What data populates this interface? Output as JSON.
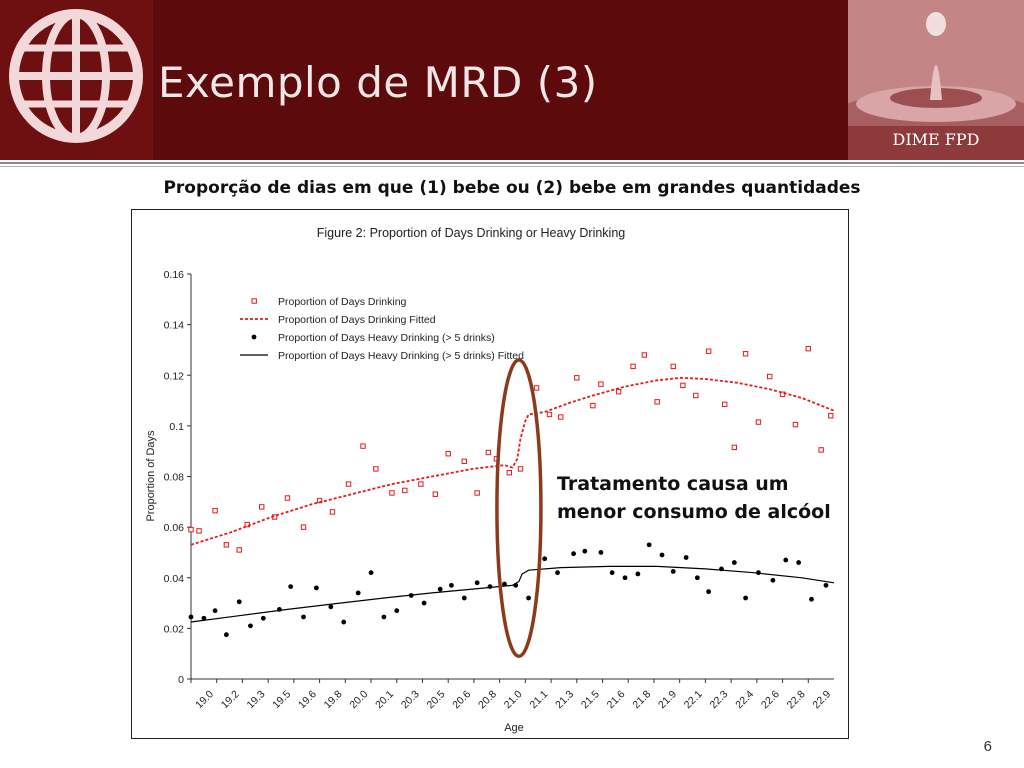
{
  "slide": {
    "title": "Exemplo de MRD (3)",
    "brand_label": "DIME FPD",
    "subtitle": "Proporção de dias em que (1) bebe ou (2) bebe em grandes quantidades",
    "annotation": "Tratamento causa um menor consumo de alcóol",
    "page_number": "6",
    "colors": {
      "header": "#5c0a0c",
      "logo_bg": "#6e0f12",
      "drinking": "#e41a1c",
      "heavy": "#000000",
      "ellipse": "#8b3a1a"
    }
  },
  "chart_data": {
    "type": "scatter",
    "title": "Figure 2: Proportion of Days Drinking or Heavy Drinking",
    "xlabel": "Age",
    "ylabel": "Proportion of Days",
    "xlim": [
      19.0,
      23.0
    ],
    "ylim": [
      0,
      0.16
    ],
    "yticks": [
      0,
      0.02,
      0.04,
      0.06,
      0.08,
      0.1,
      0.12,
      0.14,
      0.16
    ],
    "yticklabels": [
      "0",
      "0.02",
      "0.04",
      "0.06",
      "0.08",
      "0.1",
      "0.12",
      "0.14",
      "0.16"
    ],
    "xtick_labels": [
      "19.0",
      "19.2",
      "19.3",
      "19.5",
      "19.6",
      "19.8",
      "20.0",
      "20.1",
      "20.3",
      "20.5",
      "20.6",
      "20.8",
      "21.0",
      "21.1",
      "21.3",
      "21.5",
      "21.6",
      "21.8",
      "21.9",
      "22.1",
      "22.3",
      "22.4",
      "22.6",
      "22.8",
      "22.9"
    ],
    "legend_position": "top-left",
    "grid": false,
    "series": [
      {
        "name": "Proportion of Days Drinking",
        "kind": "points",
        "marker": "open-square",
        "color": "#e41a1c",
        "x": [
          19.0,
          19.05,
          19.15,
          19.22,
          19.3,
          19.35,
          19.44,
          19.52,
          19.6,
          19.7,
          19.8,
          19.88,
          19.98,
          20.07,
          20.15,
          20.25,
          20.33,
          20.43,
          20.52,
          20.6,
          20.7,
          20.78,
          20.85,
          20.9,
          20.98,
          21.05,
          21.15,
          21.23,
          21.3,
          21.4,
          21.5,
          21.55,
          21.66,
          21.75,
          21.82,
          21.9,
          22.0,
          22.06,
          22.14,
          22.22,
          22.32,
          22.38,
          22.45,
          22.53,
          22.6,
          22.68,
          22.76,
          22.84,
          22.92,
          22.98
        ],
        "y": [
          0.059,
          0.0585,
          0.0665,
          0.053,
          0.051,
          0.061,
          0.068,
          0.064,
          0.0715,
          0.06,
          0.0705,
          0.066,
          0.077,
          0.092,
          0.083,
          0.0735,
          0.0745,
          0.077,
          0.073,
          0.089,
          0.086,
          0.0735,
          0.0895,
          0.087,
          0.0815,
          0.083,
          0.115,
          0.1045,
          0.1035,
          0.119,
          0.108,
          0.1165,
          0.1135,
          0.1235,
          0.128,
          0.1095,
          0.1235,
          0.116,
          0.112,
          0.1295,
          0.1085,
          0.0915,
          0.1285,
          0.1015,
          0.1195,
          0.1125,
          0.1005,
          0.1305,
          0.0905,
          0.104
        ]
      },
      {
        "name": "Proportion of Days Drinking Fitted",
        "kind": "line",
        "dash": true,
        "color": "#e41a1c",
        "x": [
          19.0,
          19.25,
          19.5,
          19.75,
          20.0,
          20.25,
          20.5,
          20.75,
          20.95,
          21.0,
          21.03,
          21.05,
          21.08,
          21.1,
          21.2,
          21.35,
          21.5,
          21.7,
          21.9,
          22.05,
          22.2,
          22.4,
          22.6,
          22.8,
          23.0
        ],
        "y": [
          0.053,
          0.058,
          0.064,
          0.069,
          0.073,
          0.077,
          0.08,
          0.083,
          0.0845,
          0.0835,
          0.087,
          0.095,
          0.102,
          0.1045,
          0.1055,
          0.109,
          0.112,
          0.1155,
          0.118,
          0.119,
          0.1185,
          0.117,
          0.1145,
          0.111,
          0.106
        ]
      },
      {
        "name": "Proportion of Days Heavy Drinking (> 5 drinks)",
        "kind": "points",
        "marker": "filled-circle",
        "color": "#000000",
        "x": [
          19.0,
          19.08,
          19.15,
          19.22,
          19.3,
          19.37,
          19.45,
          19.55,
          19.62,
          19.7,
          19.78,
          19.87,
          19.95,
          20.04,
          20.12,
          20.2,
          20.28,
          20.37,
          20.45,
          20.55,
          20.62,
          20.7,
          20.78,
          20.86,
          20.95,
          21.02,
          21.1,
          21.2,
          21.28,
          21.38,
          21.45,
          21.55,
          21.62,
          21.7,
          21.78,
          21.85,
          21.93,
          22.0,
          22.08,
          22.15,
          22.22,
          22.3,
          22.38,
          22.45,
          22.53,
          22.62,
          22.7,
          22.78,
          22.86,
          22.95
        ],
        "y": [
          0.0245,
          0.024,
          0.027,
          0.0175,
          0.0305,
          0.021,
          0.024,
          0.0275,
          0.0365,
          0.0245,
          0.036,
          0.0285,
          0.0225,
          0.034,
          0.042,
          0.0245,
          0.027,
          0.033,
          0.03,
          0.0355,
          0.037,
          0.032,
          0.038,
          0.0365,
          0.0375,
          0.037,
          0.032,
          0.0475,
          0.042,
          0.0495,
          0.0505,
          0.05,
          0.042,
          0.04,
          0.0415,
          0.053,
          0.049,
          0.0425,
          0.048,
          0.04,
          0.0345,
          0.0435,
          0.046,
          0.032,
          0.042,
          0.039,
          0.047,
          0.046,
          0.0315,
          0.037
        ]
      },
      {
        "name": "Proportion of Days Heavy Drinking (> 5 drinks) Fitted",
        "kind": "line",
        "dash": false,
        "color": "#000000",
        "x": [
          19.0,
          19.3,
          19.6,
          19.9,
          20.2,
          20.5,
          20.8,
          21.0,
          21.04,
          21.06,
          21.1,
          21.3,
          21.6,
          21.9,
          22.2,
          22.5,
          22.8,
          23.0
        ],
        "y": [
          0.0225,
          0.025,
          0.0275,
          0.0298,
          0.032,
          0.034,
          0.0358,
          0.037,
          0.0385,
          0.0415,
          0.043,
          0.044,
          0.0445,
          0.0445,
          0.0435,
          0.042,
          0.04,
          0.038
        ]
      }
    ]
  }
}
